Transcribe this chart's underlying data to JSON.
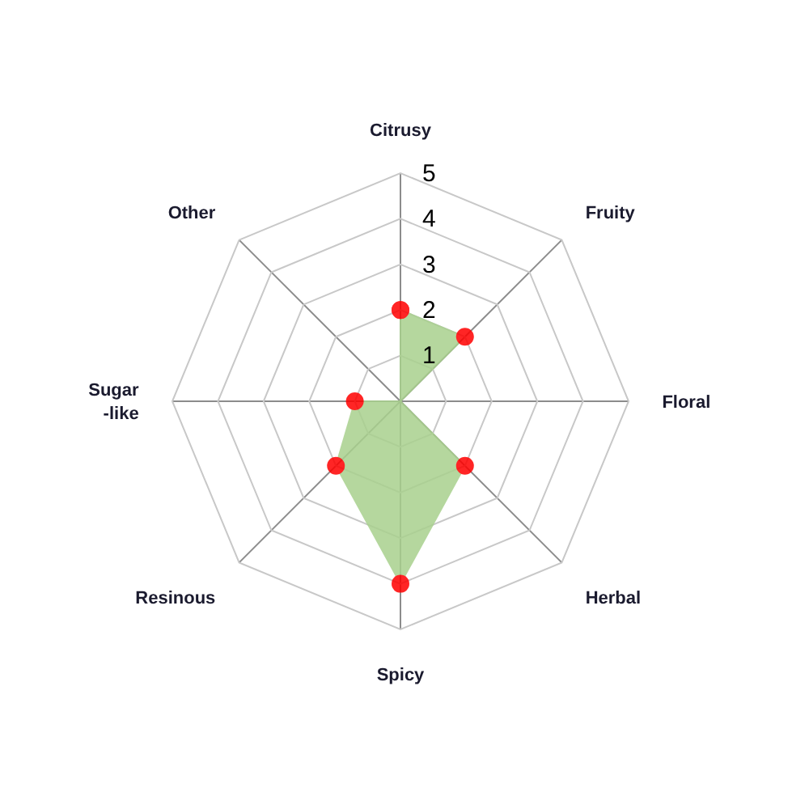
{
  "chart_data": {
    "type": "radar",
    "categories": [
      "Citrusy",
      "Fruity",
      "Floral",
      "Herbal",
      "Spicy",
      "Resinous",
      "Sugar\n-like",
      "Other"
    ],
    "series": [
      {
        "color": "#a9d18e",
        "colors": [
          "#ff0000",
          "#ff0000",
          null,
          "#ff0000",
          "#ff0000",
          "#ff0000",
          "#ff0000",
          null
        ],
        "values": [
          2,
          2,
          0,
          2,
          4,
          2,
          1,
          0
        ]
      }
    ],
    "ylim": [
      0,
      5
    ],
    "yticks": [
      1,
      2,
      3,
      4,
      5
    ],
    "grid": true,
    "marker": "circle"
  }
}
